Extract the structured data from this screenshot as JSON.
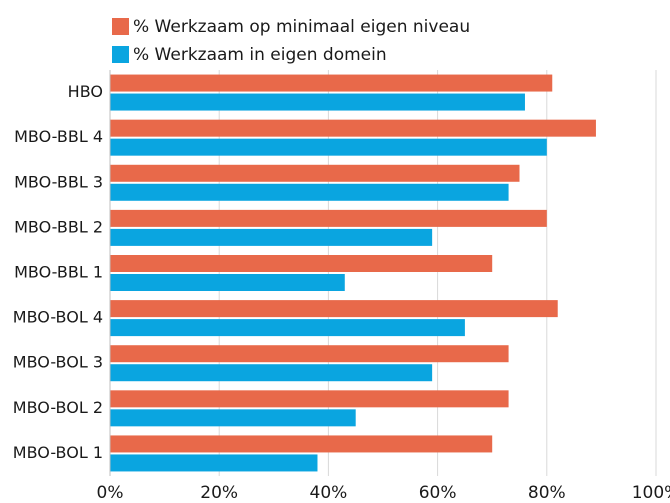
{
  "chart_data": {
    "type": "hbar",
    "categories": [
      "HBO",
      "MBO-BBL 4",
      "MBO-BBL 3",
      "MBO-BBL 2",
      "MBO-BBL 1",
      "MBO-BOL 4",
      "MBO-BOL 3",
      "MBO-BOL 2",
      "MBO-BOL 1"
    ],
    "series": [
      {
        "name": "% Werkzaam op minimaal eigen niveau",
        "color": "#e8694a",
        "values": [
          81,
          89,
          75,
          80,
          70,
          82,
          73,
          73,
          70
        ]
      },
      {
        "name": "% Werkzaam in eigen domein",
        "color": "#0aa5e0",
        "values": [
          76,
          80,
          73,
          59,
          43,
          65,
          59,
          45,
          38
        ]
      }
    ],
    "xlim": [
      0,
      100
    ],
    "xticks": [
      {
        "value": 0,
        "label": "0%"
      },
      {
        "value": 20,
        "label": "20%"
      },
      {
        "value": 40,
        "label": "40%"
      },
      {
        "value": 60,
        "label": "60%"
      },
      {
        "value": 80,
        "label": "80%"
      },
      {
        "value": 100,
        "label": "100%"
      }
    ],
    "grid": true,
    "legend": "top"
  }
}
